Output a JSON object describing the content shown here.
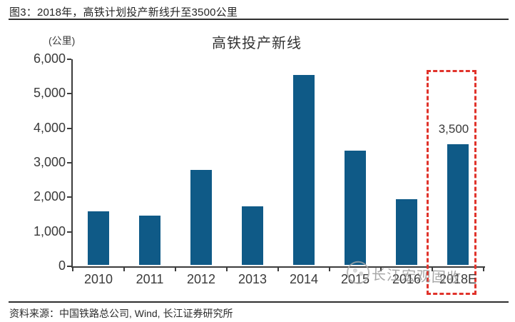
{
  "figure_caption": "图3：2018年，高铁计划投产新线升至3500公里",
  "source_note": "资料来源：中国铁路总公司, Wind, 长江证券研究所",
  "watermark": {
    "text": "长江宏观固收",
    "logo": "changjiang-circle-logo"
  },
  "colors": {
    "bar": "#0f5a87",
    "highlight_box": "#e0332b",
    "axis": "#3c3c3c",
    "text": "#2e2e2e",
    "watermark": "#8f8f8f"
  },
  "chart_data": {
    "type": "bar",
    "title": "高铁投产新线",
    "unit_label": "(公里)",
    "categories": [
      "2010",
      "2011",
      "2012",
      "2013",
      "2014",
      "2015",
      "2016",
      "2018E"
    ],
    "values": [
      1560,
      1430,
      2750,
      1700,
      5500,
      3320,
      1900,
      3500
    ],
    "bar_color": "#0f5a87",
    "ylim": [
      0,
      6000
    ],
    "ytick_step": 1000,
    "ytick_labels": [
      "0",
      "1,000",
      "2,000",
      "3,000",
      "4,000",
      "5,000",
      "6,000"
    ],
    "grid": false,
    "legend": null,
    "highlight": {
      "category": "2018E",
      "data_label": "3,500",
      "box_color": "#e0332b",
      "box_style": "dashed"
    }
  }
}
